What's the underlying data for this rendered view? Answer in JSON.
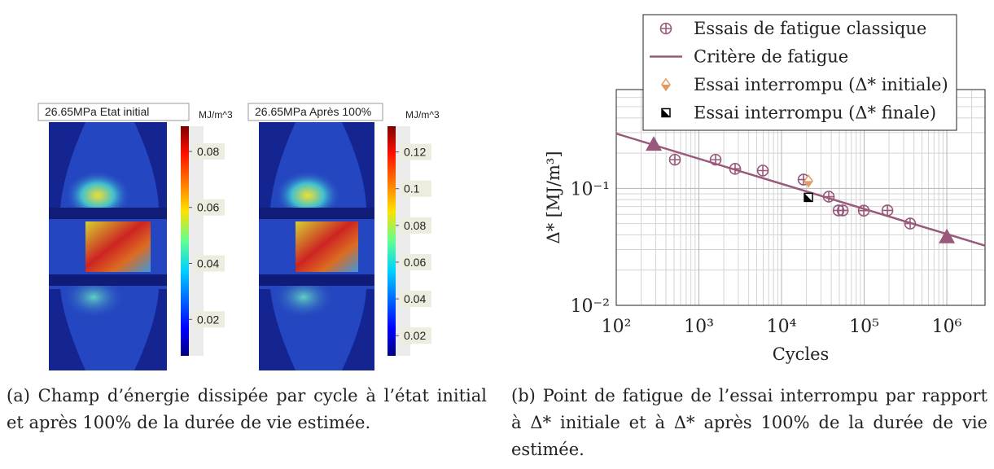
{
  "figure_a": {
    "images": [
      {
        "title": "26.65MPa Etat initial",
        "colorbar": {
          "label": "MJ/m^3",
          "clim": [
            0.007,
            0.089
          ],
          "ticks": [
            0.08,
            0.06,
            0.04,
            0.02
          ]
        }
      },
      {
        "title": "26.65MPa Après 100%",
        "colorbar": {
          "label": "MJ/m^3",
          "clim": [
            0.009,
            0.134
          ],
          "ticks": [
            0.12,
            0.1,
            0.08,
            0.06,
            0.04,
            0.02
          ]
        }
      }
    ]
  },
  "chart_data": {
    "type": "scatter",
    "x_label": "Cycles",
    "y_label": "Δ* [MJ/m³]",
    "xscale": "log",
    "yscale": "log",
    "grid": true,
    "legend": "upper right",
    "xlim": [
      100,
      2900000
    ],
    "ylim": [
      0.01,
      0.7
    ],
    "xticks": [
      {
        "value": 100,
        "label": "10²"
      },
      {
        "value": 1000,
        "label": "10³"
      },
      {
        "value": 10000,
        "label": "10⁴"
      },
      {
        "value": 100000,
        "label": "10⁵"
      },
      {
        "value": 1000000,
        "label": "10⁶"
      }
    ],
    "yticks": [
      {
        "value": 0.01,
        "label": "10⁻²"
      },
      {
        "value": 0.1,
        "label": "10⁻¹"
      }
    ],
    "series": [
      {
        "name": "Essais de fatigue classique",
        "marker": "circle-plus",
        "color": "#98597a",
        "x": [
          512,
          1592,
          2744,
          5935,
          18450,
          37260,
          48960,
          55000,
          98900,
          191000,
          360000
        ],
        "values": [
          0.176,
          0.176,
          0.147,
          0.142,
          0.119,
          0.085,
          0.0648,
          0.0648,
          0.0645,
          0.0648,
          0.05
        ]
      },
      {
        "name": "Critère de fatigue",
        "marker": "line",
        "color": "#98597a",
        "x": [
          100,
          2900000
        ],
        "values": [
          0.294,
          0.0324
        ]
      },
      {
        "marker": "triangle",
        "color": "#98597a",
        "x": [
          284,
          1000000
        ],
        "values": [
          0.235,
          0.038
        ]
      },
      {
        "name": "Essai interrompu (Δ* initiale)",
        "marker": "diamond",
        "color": "#e09a62",
        "x": [
          21150
        ],
        "values": [
          0.1156
        ]
      },
      {
        "name": "Essai interrompu (Δ* finale)",
        "marker": "half-square",
        "color": "#000000",
        "x": [
          21150
        ],
        "values": [
          0.0838
        ]
      }
    ]
  },
  "captions": [
    "(a) Champ d’énergie dissipée par cycle à l’état initial et après 100% de la durée de vie estimée.",
    "(b) Point de fatigue de l’essai interrompu par rapport à Δ* initiale et à Δ* après 100% de la durée de vie estimée."
  ]
}
